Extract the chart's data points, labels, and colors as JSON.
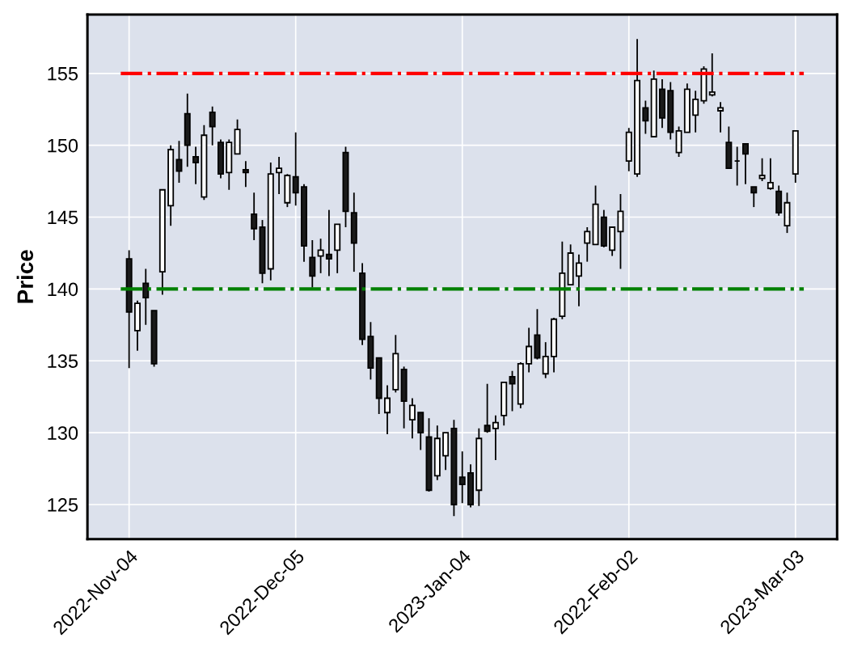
{
  "chart_data": {
    "type": "candlestick",
    "ylabel": "Price",
    "categories": [
      "2022-Nov-04",
      null,
      null,
      null,
      null,
      null,
      null,
      null,
      null,
      null,
      null,
      null,
      null,
      null,
      null,
      null,
      null,
      null,
      null,
      null,
      "2022-Dec-05",
      null,
      null,
      null,
      null,
      null,
      null,
      null,
      null,
      null,
      null,
      null,
      null,
      null,
      null,
      null,
      null,
      null,
      null,
      null,
      "2023-Jan-04",
      null,
      null,
      null,
      null,
      null,
      null,
      null,
      null,
      null,
      null,
      null,
      null,
      null,
      null,
      null,
      null,
      null,
      null,
      null,
      "2022-Feb-02",
      null,
      null,
      null,
      null,
      null,
      null,
      null,
      null,
      null,
      null,
      null,
      null,
      null,
      null,
      null,
      null,
      null,
      null,
      null,
      "2023-Mar-03"
    ],
    "ohlc": [
      [
        142.1,
        142.7,
        134.5,
        138.4
      ],
      [
        137.1,
        139.2,
        135.7,
        139.0
      ],
      [
        140.4,
        141.4,
        137.5,
        139.4
      ],
      [
        138.5,
        138.5,
        134.6,
        134.8
      ],
      [
        141.2,
        146.9,
        139.6,
        146.9
      ],
      [
        145.8,
        150.0,
        144.4,
        149.7
      ],
      [
        149.0,
        150.3,
        147.4,
        148.2
      ],
      [
        152.2,
        153.6,
        148.5,
        150.0
      ],
      [
        149.2,
        149.9,
        147.3,
        148.8
      ],
      [
        146.4,
        151.4,
        146.2,
        150.7
      ],
      [
        152.3,
        152.7,
        150.0,
        151.3
      ],
      [
        150.2,
        150.4,
        147.7,
        148.0
      ],
      [
        148.1,
        150.4,
        146.9,
        150.2
      ],
      [
        149.4,
        151.8,
        149.4,
        151.1
      ],
      [
        148.3,
        148.9,
        147.1,
        148.1
      ],
      [
        145.2,
        146.7,
        143.4,
        144.2
      ],
      [
        144.3,
        144.8,
        140.4,
        141.1
      ],
      [
        141.4,
        148.8,
        140.6,
        148.0
      ],
      [
        148.1,
        149.2,
        146.6,
        148.4
      ],
      [
        146.0,
        148.0,
        145.7,
        147.9
      ],
      [
        147.8,
        150.9,
        145.8,
        146.7
      ],
      [
        147.1,
        147.3,
        141.9,
        143.0
      ],
      [
        142.2,
        143.4,
        140.1,
        140.9
      ],
      [
        142.3,
        143.5,
        141.1,
        142.7
      ],
      [
        142.4,
        145.5,
        140.9,
        142.1
      ],
      [
        142.7,
        144.5,
        141.1,
        144.5
      ],
      [
        149.5,
        149.9,
        144.3,
        145.4
      ],
      [
        145.3,
        146.7,
        141.2,
        143.2
      ],
      [
        141.1,
        141.8,
        136.1,
        136.5
      ],
      [
        136.7,
        137.7,
        133.7,
        134.5
      ],
      [
        135.2,
        135.2,
        131.3,
        132.4
      ],
      [
        131.4,
        133.3,
        129.9,
        132.4
      ],
      [
        133.0,
        136.8,
        132.8,
        135.5
      ],
      [
        134.4,
        134.6,
        130.3,
        132.2
      ],
      [
        130.9,
        132.4,
        129.6,
        131.9
      ],
      [
        131.4,
        131.4,
        128.8,
        130.0
      ],
      [
        129.7,
        131.0,
        125.9,
        126.0
      ],
      [
        127.0,
        130.5,
        126.7,
        129.6
      ],
      [
        128.4,
        130.0,
        127.4,
        130.0
      ],
      [
        130.3,
        130.9,
        124.2,
        125.0
      ],
      [
        126.9,
        128.7,
        125.1,
        126.4
      ],
      [
        127.2,
        127.8,
        124.8,
        125.0
      ],
      [
        126.0,
        130.3,
        124.9,
        129.6
      ],
      [
        130.5,
        133.4,
        130.0,
        130.1
      ],
      [
        130.3,
        131.2,
        128.1,
        130.7
      ],
      [
        131.2,
        133.5,
        130.5,
        133.5
      ],
      [
        133.9,
        134.3,
        131.5,
        133.4
      ],
      [
        132.0,
        134.9,
        131.7,
        134.8
      ],
      [
        134.8,
        137.3,
        134.2,
        136.0
      ],
      [
        136.8,
        138.6,
        135.1,
        135.2
      ],
      [
        134.1,
        136.3,
        133.8,
        135.3
      ],
      [
        135.3,
        138.0,
        134.2,
        137.9
      ],
      [
        138.1,
        143.3,
        137.9,
        141.1
      ],
      [
        140.3,
        143.1,
        140.3,
        142.5
      ],
      [
        140.9,
        142.4,
        138.8,
        141.8
      ],
      [
        143.2,
        144.3,
        141.9,
        144.0
      ],
      [
        143.1,
        147.2,
        143.1,
        145.9
      ],
      [
        145.0,
        145.5,
        142.9,
        143.0
      ],
      [
        142.7,
        144.3,
        142.3,
        144.3
      ],
      [
        144.0,
        146.6,
        141.4,
        145.4
      ],
      [
        148.9,
        151.2,
        148.2,
        150.9
      ],
      [
        148.0,
        157.4,
        147.8,
        154.5
      ],
      [
        152.6,
        153.1,
        150.8,
        151.7
      ],
      [
        150.6,
        155.2,
        150.6,
        154.6
      ],
      [
        153.9,
        154.6,
        151.2,
        151.9
      ],
      [
        153.8,
        154.4,
        150.4,
        150.9
      ],
      [
        149.5,
        151.3,
        149.2,
        151.0
      ],
      [
        150.9,
        154.3,
        150.9,
        153.9
      ],
      [
        152.1,
        153.8,
        150.9,
        153.2
      ],
      [
        153.1,
        155.5,
        152.9,
        155.3
      ],
      [
        153.5,
        156.4,
        153.4,
        153.7
      ],
      [
        152.4,
        153.0,
        150.9,
        152.6
      ],
      [
        150.2,
        151.3,
        148.4,
        148.4
      ],
      [
        148.9,
        149.9,
        147.2,
        148.9
      ],
      [
        150.1,
        150.1,
        147.3,
        149.4
      ],
      [
        147.1,
        147.1,
        145.7,
        146.7
      ],
      [
        147.7,
        149.1,
        147.5,
        147.9
      ],
      [
        147.0,
        149.1,
        146.9,
        147.4
      ],
      [
        146.8,
        147.2,
        145.1,
        145.3
      ],
      [
        144.4,
        146.7,
        143.9,
        146.0
      ],
      [
        148.0,
        151.0,
        147.4,
        151.0
      ]
    ],
    "ylim": [
      122.6,
      159.1
    ],
    "yticks": [
      125,
      130,
      135,
      140,
      145,
      150,
      155
    ],
    "grid": true,
    "ref_lines": [
      {
        "axis": "y",
        "value": 155,
        "color": "#ff0000",
        "line_style": "dashdot"
      },
      {
        "axis": "y",
        "value": 140,
        "color": "#008000",
        "line_style": "dashdot"
      }
    ]
  }
}
